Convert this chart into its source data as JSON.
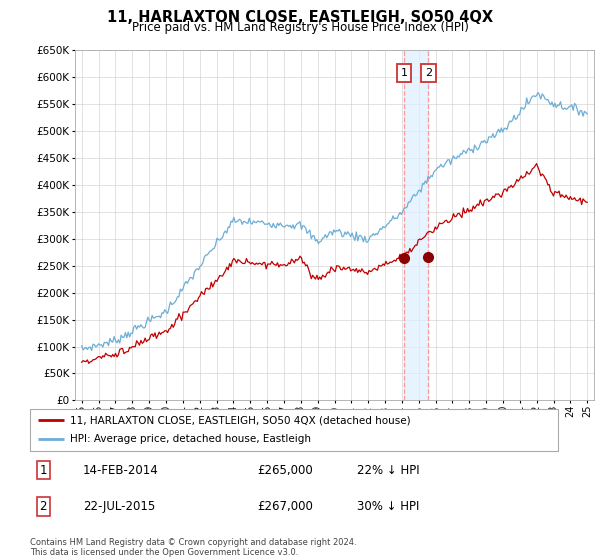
{
  "title": "11, HARLAXTON CLOSE, EASTLEIGH, SO50 4QX",
  "subtitle": "Price paid vs. HM Land Registry's House Price Index (HPI)",
  "hpi_color": "#6baed6",
  "price_color": "#c00000",
  "vline_color": "#ff9999",
  "span_color": "#ddeeff",
  "marker_color": "#8b0000",
  "ylim": [
    0,
    650000
  ],
  "yticks": [
    0,
    50000,
    100000,
    150000,
    200000,
    250000,
    300000,
    350000,
    400000,
    450000,
    500000,
    550000,
    600000,
    650000
  ],
  "transaction1": {
    "date_num": 2014.12,
    "price": 265000,
    "label": "1",
    "date_str": "14-FEB-2014",
    "pct": "22% ↓ HPI"
  },
  "transaction2": {
    "date_num": 2015.56,
    "price": 267000,
    "label": "2",
    "date_str": "22-JUL-2015",
    "pct": "30% ↓ HPI"
  },
  "legend_label1": "11, HARLAXTON CLOSE, EASTLEIGH, SO50 4QX (detached house)",
  "legend_label2": "HPI: Average price, detached house, Eastleigh",
  "footer": "Contains HM Land Registry data © Crown copyright and database right 2024.\nThis data is licensed under the Open Government Licence v3.0.",
  "background_color": "#ffffff",
  "grid_color": "#cccccc"
}
